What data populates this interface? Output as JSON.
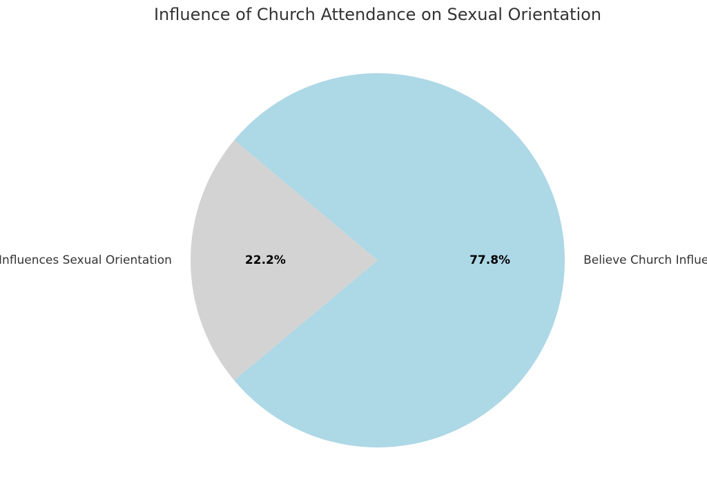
{
  "chart_data": {
    "type": "pie",
    "title": "Influence of Church Attendance on Sexual Orientation",
    "start_angle_deg": 140,
    "direction": "counterclockwise",
    "slices": [
      {
        "label": "Do Not Believe Church Influences Sexual Orientation",
        "value": 22.2,
        "percent_label": "22.2%",
        "color": "#d3d3d3"
      },
      {
        "label": "Believe Church Influences Sexual Orientation",
        "value": 77.8,
        "percent_label": "77.8%",
        "color": "#add8e6"
      }
    ]
  }
}
